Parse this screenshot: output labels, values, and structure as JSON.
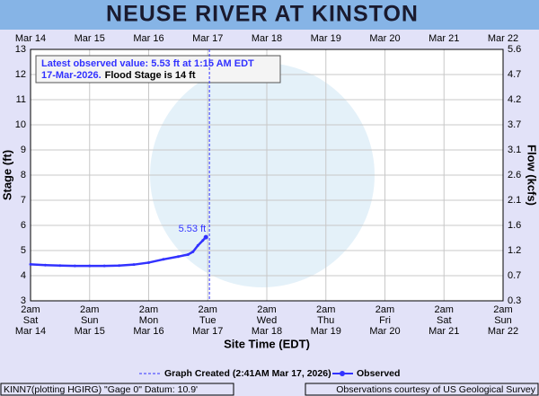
{
  "chart_data": {
    "type": "line",
    "title": "NEUSE RIVER AT KINSTON",
    "x_label": "Site Time (EDT)",
    "y_label": "Stage (ft)",
    "y2_label": "Flow (kcfs)",
    "xlim": [
      "2026-03-14T02:00",
      "2026-03-22T02:00"
    ],
    "xticks": [
      {
        "value": "2026-03-14T02:00",
        "time": "2am",
        "day": "Sat",
        "date": "Mar 14"
      },
      {
        "value": "2026-03-15T02:00",
        "time": "2am",
        "day": "Sun",
        "date": "Mar 15"
      },
      {
        "value": "2026-03-16T02:00",
        "time": "2am",
        "day": "Mon",
        "date": "Mar 16"
      },
      {
        "value": "2026-03-17T02:00",
        "time": "2am",
        "day": "Tue",
        "date": "Mar 17"
      },
      {
        "value": "2026-03-18T02:00",
        "time": "2am",
        "day": "Wed",
        "date": "Mar 18"
      },
      {
        "value": "2026-03-19T02:00",
        "time": "2am",
        "day": "Thu",
        "date": "Mar 19"
      },
      {
        "value": "2026-03-20T02:00",
        "time": "2am",
        "day": "Fri",
        "date": "Mar 20"
      },
      {
        "value": "2026-03-21T02:00",
        "time": "2am",
        "day": "Sat",
        "date": "Mar 21"
      },
      {
        "value": "2026-03-22T02:00",
        "time": "2am",
        "day": "Sun",
        "date": "Mar 22"
      }
    ],
    "ylim": [
      3,
      13
    ],
    "yticks": [
      3,
      4,
      5,
      6,
      7,
      8,
      9,
      10,
      11,
      12,
      13
    ],
    "y2ticks": [
      0.3,
      0.7,
      1.2,
      1.6,
      2.1,
      2.6,
      3.1,
      3.7,
      4.2,
      4.7,
      5.6
    ],
    "grid": true,
    "x": [
      "2026-03-14T02:00",
      "2026-03-14T08:00",
      "2026-03-14T14:00",
      "2026-03-14T20:00",
      "2026-03-15T02:00",
      "2026-03-15T08:00",
      "2026-03-15T14:00",
      "2026-03-15T20:00",
      "2026-03-16T02:00",
      "2026-03-16T08:00",
      "2026-03-16T14:00",
      "2026-03-16T18:00",
      "2026-03-16T20:00",
      "2026-03-16T22:00",
      "2026-03-17T00:00",
      "2026-03-17T01:15"
    ],
    "series": [
      {
        "name": "Observed",
        "color": "#3232ff",
        "values": [
          4.45,
          4.42,
          4.4,
          4.39,
          4.39,
          4.39,
          4.4,
          4.44,
          4.52,
          4.65,
          4.76,
          4.84,
          4.95,
          5.2,
          5.4,
          5.53
        ],
        "value_labels": [
          null,
          null,
          null,
          null,
          null,
          null,
          null,
          null,
          null,
          null,
          null,
          null,
          null,
          null,
          null,
          "5.53 ft"
        ]
      }
    ],
    "created_time": "2026-03-17T02:41",
    "created_label": "Graph Created (2:41AM Mar 17, 2026)",
    "latest_line1": "Latest observed value: 5.53 ft at 1:15 AM EDT",
    "latest_line2": "17-Mar-2026.",
    "flood_stage": "Flood Stage is 14 ft",
    "footer_left": "KINN7(plotting HGIRG) \"Gage 0\" Datum: 10.9'",
    "footer_right": "Observations courtesy of US Geological Survey"
  }
}
